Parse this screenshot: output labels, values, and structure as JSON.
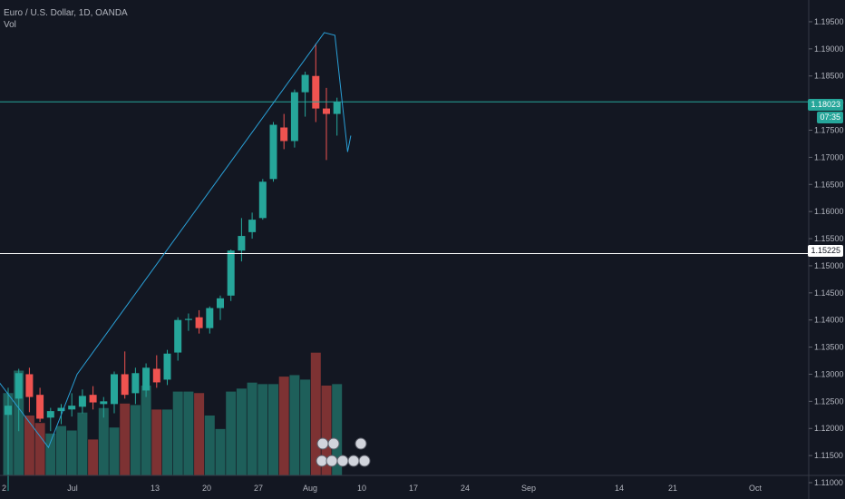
{
  "header": {
    "symbol_line": "Euro / U.S. Dollar, 1D, OANDA",
    "volume_label": "Vol"
  },
  "colors": {
    "background": "#131722",
    "up": "#26a69a",
    "down": "#ef5350",
    "volume_up": "#1e5f5a",
    "volume_down": "#7d3233",
    "trendline": "#2a9fd6",
    "level_line": "#ffffff",
    "current_line": "#26a69a",
    "text": "#b2b5be"
  },
  "price_badges": {
    "current": "1.18023",
    "countdown": "07:35",
    "level": "1.15225"
  },
  "chart_data": {
    "type": "candlestick",
    "ylim": [
      1.1095,
      1.1965
    ],
    "y_ticks": [
      "1.19500",
      "1.19000",
      "1.18500",
      "1.18000",
      "1.17500",
      "1.17000",
      "1.16500",
      "1.16000",
      "1.15500",
      "1.15000",
      "1.14500",
      "1.14000",
      "1.13500",
      "1.13000",
      "1.12500",
      "1.12000",
      "1.11500",
      "1.11000"
    ],
    "x_tick_labels": [
      "2",
      "Jul",
      "13",
      "20",
      "27",
      "Aug",
      "10",
      "17",
      "24",
      "Sep",
      "14",
      "21",
      "Oct"
    ],
    "horizontal_levels": [
      1.18023,
      1.15225
    ],
    "candles": [
      {
        "o": 1.1225,
        "h": 1.1275,
        "l": 1.1085,
        "c": 1.1242
      },
      {
        "o": 1.1255,
        "h": 1.131,
        "l": 1.1195,
        "c": 1.1302
      },
      {
        "o": 1.13,
        "h": 1.1312,
        "l": 1.123,
        "c": 1.1258
      },
      {
        "o": 1.1262,
        "h": 1.1275,
        "l": 1.1212,
        "c": 1.1218
      },
      {
        "o": 1.122,
        "h": 1.1238,
        "l": 1.1195,
        "c": 1.1232
      },
      {
        "o": 1.1232,
        "h": 1.1245,
        "l": 1.1208,
        "c": 1.1238
      },
      {
        "o": 1.1235,
        "h": 1.1265,
        "l": 1.1222,
        "c": 1.1242
      },
      {
        "o": 1.124,
        "h": 1.1272,
        "l": 1.1228,
        "c": 1.126
      },
      {
        "o": 1.1262,
        "h": 1.1278,
        "l": 1.1235,
        "c": 1.1248
      },
      {
        "o": 1.1245,
        "h": 1.1258,
        "l": 1.122,
        "c": 1.125
      },
      {
        "o": 1.1245,
        "h": 1.1305,
        "l": 1.1228,
        "c": 1.13
      },
      {
        "o": 1.13,
        "h": 1.1342,
        "l": 1.1255,
        "c": 1.1262
      },
      {
        "o": 1.1265,
        "h": 1.1312,
        "l": 1.1245,
        "c": 1.1302
      },
      {
        "o": 1.127,
        "h": 1.132,
        "l": 1.1258,
        "c": 1.1312
      },
      {
        "o": 1.131,
        "h": 1.1335,
        "l": 1.1275,
        "c": 1.1285
      },
      {
        "o": 1.129,
        "h": 1.1345,
        "l": 1.128,
        "c": 1.1338
      },
      {
        "o": 1.134,
        "h": 1.1405,
        "l": 1.1325,
        "c": 1.14
      },
      {
        "o": 1.14,
        "h": 1.1412,
        "l": 1.138,
        "c": 1.1402
      },
      {
        "o": 1.1405,
        "h": 1.1418,
        "l": 1.1375,
        "c": 1.1385
      },
      {
        "o": 1.1385,
        "h": 1.1425,
        "l": 1.1375,
        "c": 1.1422
      },
      {
        "o": 1.1422,
        "h": 1.1445,
        "l": 1.14,
        "c": 1.144
      },
      {
        "o": 1.1445,
        "h": 1.153,
        "l": 1.1435,
        "c": 1.1528
      },
      {
        "o": 1.1528,
        "h": 1.1588,
        "l": 1.1508,
        "c": 1.1555
      },
      {
        "o": 1.1562,
        "h": 1.1598,
        "l": 1.155,
        "c": 1.1585
      },
      {
        "o": 1.1588,
        "h": 1.166,
        "l": 1.1585,
        "c": 1.1655
      },
      {
        "o": 1.166,
        "h": 1.1765,
        "l": 1.1655,
        "c": 1.176
      },
      {
        "o": 1.1755,
        "h": 1.178,
        "l": 1.1715,
        "c": 1.173
      },
      {
        "o": 1.173,
        "h": 1.1825,
        "l": 1.1718,
        "c": 1.182
      },
      {
        "o": 1.182,
        "h": 1.1858,
        "l": 1.1775,
        "c": 1.1852
      },
      {
        "o": 1.185,
        "h": 1.191,
        "l": 1.1765,
        "c": 1.179
      },
      {
        "o": 1.179,
        "h": 1.1828,
        "l": 1.1695,
        "c": 1.178
      },
      {
        "o": 1.178,
        "h": 1.181,
        "l": 1.174,
        "c": 1.1802
      }
    ],
    "volumes": [
      0.55,
      0.7,
      0.4,
      0.35,
      0.28,
      0.33,
      0.3,
      0.42,
      0.24,
      0.45,
      0.32,
      0.48,
      0.47,
      0.6,
      0.44,
      0.44,
      0.56,
      0.56,
      0.55,
      0.4,
      0.31,
      0.56,
      0.58,
      0.62,
      0.61,
      0.61,
      0.66,
      0.67,
      0.64,
      0.82,
      0.6,
      0.61
    ],
    "trendline": [
      {
        "x": -8,
        "y": 1.147
      },
      {
        "x": 3.8,
        "y": 1.1165
      },
      {
        "x": 6.5,
        "y": 1.13
      },
      {
        "x": 29.8,
        "y": 1.193
      },
      {
        "x": 30.8,
        "y": 1.1925
      },
      {
        "x": 32.0,
        "y": 1.171
      },
      {
        "x": 32.3,
        "y": 1.174
      }
    ]
  }
}
